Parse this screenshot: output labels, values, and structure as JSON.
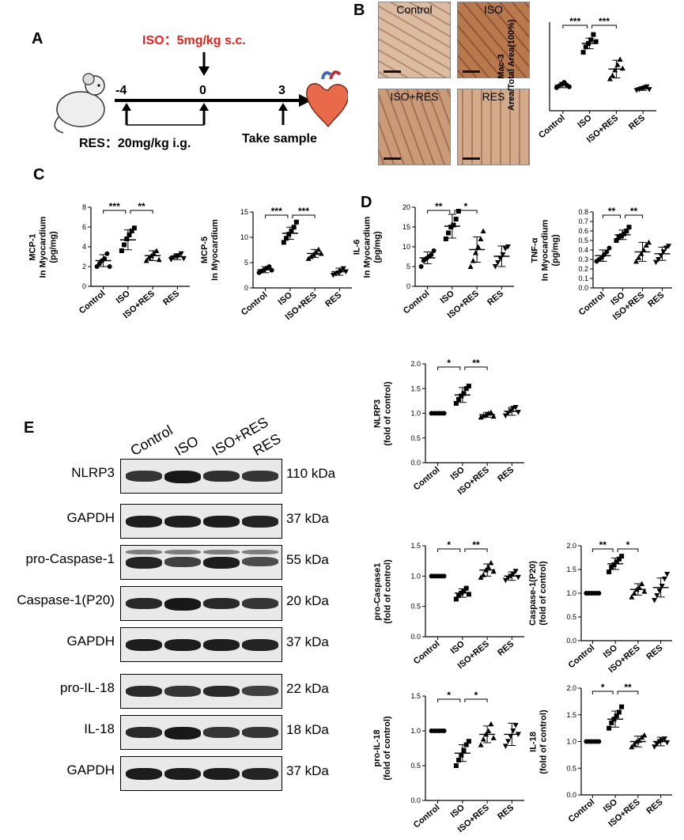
{
  "panels": {
    "A": "A",
    "B": "B",
    "C": "C",
    "D": "D",
    "E": "E"
  },
  "schematic": {
    "iso_label": "ISO：5mg/kg s.c.",
    "res_label": "RES：20mg/kg i.g.",
    "sample_label": "Take sample",
    "timepoints": [
      "-4",
      "0",
      "3"
    ],
    "iso_color": "#e8201c"
  },
  "histology": {
    "labels": [
      "Control",
      "ISO",
      "ISO+RES",
      "RES"
    ],
    "intensity": [
      0.25,
      0.85,
      0.55,
      0.4
    ]
  },
  "groups": [
    "Control",
    "ISO",
    "ISO+RES",
    "RES"
  ],
  "blot": {
    "lanes": [
      "Control",
      "ISO",
      "ISO+RES",
      "RES"
    ],
    "bands": [
      {
        "name": "NLRP3",
        "kda": "110 kDa",
        "strength": [
          0.7,
          0.95,
          0.75,
          0.7
        ]
      },
      {
        "name": "GAPDH",
        "kda": "37 kDa",
        "strength": [
          0.9,
          0.9,
          0.9,
          0.85
        ]
      },
      {
        "name": "pro-Caspase-1",
        "kda": "55 kDa",
        "strength": [
          0.85,
          0.6,
          0.9,
          0.5
        ]
      },
      {
        "name": "Caspase-1(P20)",
        "kda": "20 kDa",
        "strength": [
          0.8,
          0.95,
          0.8,
          0.7
        ]
      },
      {
        "name": "GAPDH",
        "kda": "37 kDa",
        "strength": [
          0.9,
          0.9,
          0.9,
          0.85
        ]
      },
      {
        "name": "pro-IL-18",
        "kda": "22 kDa",
        "strength": [
          0.8,
          0.7,
          0.8,
          0.6
        ]
      },
      {
        "name": "IL-18",
        "kda": "18 kDa",
        "strength": [
          0.8,
          0.95,
          0.7,
          0.7
        ]
      },
      {
        "name": "GAPDH",
        "kda": "37 kDa",
        "strength": [
          0.9,
          0.9,
          0.9,
          0.85
        ]
      }
    ]
  },
  "chart_data": [
    {
      "id": "mac3",
      "type": "scatter",
      "ylabel": "Mac-3\nArea/Total Area(100%)",
      "ylim": [
        0,
        5
      ],
      "yticks": [],
      "categories": [
        "Control",
        "ISO",
        "ISO+RES",
        "RES"
      ],
      "means": [
        1.45,
        3.8,
        2.35,
        1.25
      ],
      "sd": [
        0.15,
        0.3,
        0.5,
        0.1
      ],
      "points": [
        [
          1.3,
          1.4,
          1.5,
          1.6,
          1.45,
          1.35
        ],
        [
          3.3,
          3.6,
          3.8,
          4.0,
          4.3,
          3.9
        ],
        [
          1.8,
          2.0,
          2.3,
          2.6,
          2.9,
          2.4
        ],
        [
          1.15,
          1.2,
          1.25,
          1.3,
          1.35,
          1.2
        ]
      ],
      "sig": [
        {
          "from": 0,
          "to": 1,
          "text": "***"
        },
        {
          "from": 1,
          "to": 2,
          "text": "***"
        }
      ]
    },
    {
      "id": "mcp1",
      "type": "scatter",
      "ylabel": "MCP-1\nIn Myocardium\n(pg/mg)",
      "ylim": [
        0,
        8
      ],
      "yticks": [
        0,
        2,
        4,
        6,
        8
      ],
      "categories": [
        "Control",
        "ISO",
        "ISO+RES",
        "RES"
      ],
      "means": [
        2.6,
        4.7,
        3.1,
        3.0
      ],
      "sd": [
        0.6,
        1.0,
        0.5,
        0.3
      ],
      "points": [
        [
          2.0,
          2.3,
          2.6,
          2.8,
          3.3,
          2.0
        ],
        [
          3.6,
          4.2,
          4.8,
          5.2,
          5.6,
          5.9
        ],
        [
          2.6,
          2.9,
          3.1,
          3.3,
          3.6,
          2.7
        ],
        [
          2.7,
          2.9,
          3.0,
          3.1,
          3.3,
          2.8
        ]
      ],
      "sig": [
        {
          "from": 0,
          "to": 1,
          "text": "***"
        },
        {
          "from": 1,
          "to": 2,
          "text": "**"
        }
      ]
    },
    {
      "id": "mcp5",
      "type": "scatter",
      "ylabel": "MCP-5\nIn Myocardium",
      "ylim": [
        0,
        15
      ],
      "yticks": [
        0,
        5,
        10,
        15
      ],
      "categories": [
        "Control",
        "ISO",
        "ISO+RES",
        "RES"
      ],
      "means": [
        3.6,
        10.8,
        6.8,
        3.2
      ],
      "sd": [
        0.6,
        1.2,
        0.8,
        0.7
      ],
      "points": [
        [
          3.0,
          3.3,
          3.6,
          3.9,
          4.2,
          3.5
        ],
        [
          9.0,
          9.8,
          10.6,
          11.2,
          12.0,
          13.0
        ],
        [
          5.8,
          6.2,
          6.6,
          7.0,
          7.6,
          6.8
        ],
        [
          2.5,
          2.8,
          3.0,
          3.3,
          3.8,
          3.2
        ]
      ],
      "sig": [
        {
          "from": 0,
          "to": 1,
          "text": "***"
        },
        {
          "from": 1,
          "to": 2,
          "text": "***"
        }
      ]
    },
    {
      "id": "il6",
      "type": "scatter",
      "ylabel": "IL-6\nIn Myocardium\n(pg/mg)",
      "ylim": [
        0,
        20
      ],
      "yticks": [
        0,
        5,
        10,
        15,
        20
      ],
      "categories": [
        "Control",
        "ISO",
        "ISO+RES",
        "RES"
      ],
      "means": [
        7.2,
        15.2,
        9.3,
        7.6
      ],
      "sd": [
        1.5,
        3.0,
        3.2,
        2.6
      ],
      "points": [
        [
          5.0,
          6.5,
          7.0,
          7.5,
          8.0,
          9.0
        ],
        [
          12.0,
          13.5,
          15.0,
          15.5,
          17.0,
          19.0
        ],
        [
          5.0,
          6.5,
          8.5,
          10.0,
          12.0,
          14.0
        ],
        [
          5.0,
          6.0,
          7.0,
          8.0,
          9.5,
          10.0
        ]
      ],
      "sig": [
        {
          "from": 0,
          "to": 1,
          "text": "**"
        },
        {
          "from": 1,
          "to": 2,
          "text": "*"
        }
      ]
    },
    {
      "id": "tnfa",
      "type": "scatter",
      "ylabel": "TNF-α\nIn Myocardium\n(pg/mg)",
      "ylim": [
        0,
        0.8
      ],
      "yticks": [
        0.0,
        0.1,
        0.2,
        0.3,
        0.4,
        0.5,
        0.6,
        0.7,
        0.8
      ],
      "categories": [
        "Control",
        "ISO",
        "ISO+RES",
        "RES"
      ],
      "means": [
        0.34,
        0.56,
        0.38,
        0.36
      ],
      "sd": [
        0.06,
        0.05,
        0.1,
        0.07
      ],
      "points": [
        [
          0.28,
          0.3,
          0.32,
          0.35,
          0.38,
          0.42
        ],
        [
          0.5,
          0.53,
          0.55,
          0.57,
          0.6,
          0.64
        ],
        [
          0.28,
          0.32,
          0.36,
          0.4,
          0.45,
          0.48
        ],
        [
          0.27,
          0.3,
          0.34,
          0.38,
          0.42,
          0.44
        ]
      ],
      "sig": [
        {
          "from": 0,
          "to": 1,
          "text": "**"
        },
        {
          "from": 1,
          "to": 2,
          "text": "**"
        }
      ]
    },
    {
      "id": "nlrp3",
      "type": "scatter",
      "ylabel": "NLRP3\n(fold of control)",
      "ylim": [
        0,
        2.0
      ],
      "yticks": [
        0.0,
        0.5,
        1.0,
        1.5,
        2.0
      ],
      "categories": [
        "Control",
        "ISO",
        "ISO+RES",
        "RES"
      ],
      "means": [
        1.0,
        1.37,
        0.97,
        1.04
      ],
      "sd": [
        0.01,
        0.15,
        0.05,
        0.08
      ],
      "points": [
        [
          1.0,
          1.0,
          1.0,
          1.0,
          1.0,
          1.0
        ],
        [
          1.2,
          1.28,
          1.35,
          1.4,
          1.5,
          1.55
        ],
        [
          0.92,
          0.95,
          0.97,
          1.0,
          1.02,
          0.94
        ],
        [
          0.95,
          1.0,
          1.05,
          1.1,
          1.12,
          1.02
        ]
      ],
      "sig": [
        {
          "from": 0,
          "to": 1,
          "text": "*"
        },
        {
          "from": 1,
          "to": 2,
          "text": "**"
        }
      ]
    },
    {
      "id": "procasp1",
      "type": "scatter",
      "ylabel": "pro-Caspase1\n(fold of control)",
      "ylim": [
        0,
        1.5
      ],
      "yticks": [
        0.0,
        0.5,
        1.0,
        1.5
      ],
      "categories": [
        "Control",
        "ISO",
        "ISO+RES",
        "RES"
      ],
      "means": [
        1.0,
        0.72,
        1.1,
        1.0
      ],
      "sd": [
        0.01,
        0.07,
        0.1,
        0.07
      ],
      "points": [
        [
          1.0,
          1.0,
          1.0,
          1.0,
          1.0,
          1.0
        ],
        [
          0.62,
          0.68,
          0.72,
          0.75,
          0.8,
          0.7
        ],
        [
          0.98,
          1.02,
          1.1,
          1.15,
          1.22,
          1.08
        ],
        [
          0.93,
          0.97,
          1.0,
          1.03,
          1.08,
          0.98
        ]
      ],
      "sig": [
        {
          "from": 0,
          "to": 1,
          "text": "*"
        },
        {
          "from": 1,
          "to": 2,
          "text": "**"
        }
      ]
    },
    {
      "id": "casp1",
      "type": "scatter",
      "ylabel": "Caspase-1(P20)\n(fold of control)",
      "ylim": [
        0,
        2.0
      ],
      "yticks": [
        0.0,
        0.5,
        1.0,
        1.5,
        2.0
      ],
      "categories": [
        "Control",
        "ISO",
        "ISO+RES",
        "RES"
      ],
      "means": [
        1.0,
        1.62,
        1.08,
        1.12
      ],
      "sd": [
        0.01,
        0.12,
        0.12,
        0.2
      ],
      "points": [
        [
          1.0,
          1.0,
          1.0,
          1.0,
          1.0,
          1.0
        ],
        [
          1.45,
          1.55,
          1.6,
          1.66,
          1.72,
          1.78
        ],
        [
          0.92,
          1.0,
          1.08,
          1.12,
          1.2,
          1.04
        ],
        [
          0.85,
          0.95,
          1.05,
          1.15,
          1.3,
          1.4
        ]
      ],
      "sig": [
        {
          "from": 0,
          "to": 1,
          "text": "**"
        },
        {
          "from": 1,
          "to": 2,
          "text": "*"
        }
      ]
    },
    {
      "id": "proil18",
      "type": "scatter",
      "ylabel": "pro-IL-18\n(fold of control)",
      "ylim": [
        0,
        1.5
      ],
      "yticks": [
        0.0,
        0.5,
        1.0,
        1.5
      ],
      "categories": [
        "Control",
        "ISO",
        "ISO+RES",
        "RES"
      ],
      "means": [
        1.0,
        0.68,
        0.95,
        0.95
      ],
      "sd": [
        0.01,
        0.12,
        0.12,
        0.16
      ],
      "points": [
        [
          1.0,
          1.0,
          1.0,
          1.0,
          1.0,
          1.0
        ],
        [
          0.5,
          0.58,
          0.65,
          0.72,
          0.8,
          0.85
        ],
        [
          0.8,
          0.88,
          0.95,
          1.0,
          1.1,
          0.9
        ],
        [
          0.78,
          0.85,
          0.92,
          1.0,
          1.08,
          0.95
        ]
      ],
      "sig": [
        {
          "from": 0,
          "to": 1,
          "text": "*"
        },
        {
          "from": 1,
          "to": 2,
          "text": "*"
        }
      ]
    },
    {
      "id": "il18",
      "type": "scatter",
      "ylabel": "IL-18\n(fold of control)",
      "ylim": [
        0,
        2.0
      ],
      "yticks": [
        0.0,
        0.5,
        1.0,
        1.5,
        2.0
      ],
      "categories": [
        "Control",
        "ISO",
        "ISO+RES",
        "RES"
      ],
      "means": [
        1.0,
        1.42,
        1.0,
        1.0
      ],
      "sd": [
        0.01,
        0.15,
        0.1,
        0.08
      ],
      "points": [
        [
          1.0,
          1.0,
          1.0,
          1.0,
          1.0,
          1.0
        ],
        [
          1.25,
          1.35,
          1.42,
          1.48,
          1.55,
          1.65
        ],
        [
          0.9,
          0.95,
          1.0,
          1.02,
          1.08,
          1.12
        ],
        [
          0.9,
          0.95,
          1.0,
          1.02,
          1.05,
          0.98
        ]
      ],
      "sig": [
        {
          "from": 0,
          "to": 1,
          "text": "*"
        },
        {
          "from": 1,
          "to": 2,
          "text": "**"
        }
      ]
    }
  ]
}
